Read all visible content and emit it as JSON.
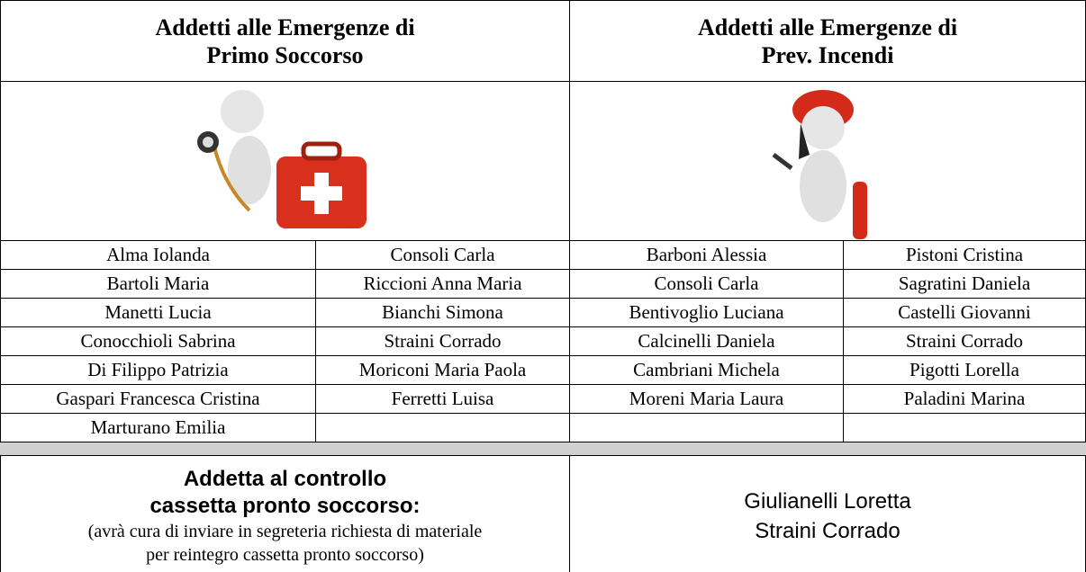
{
  "header": {
    "first_aid": [
      "Addetti alle Emergenze di",
      "Primo Soccorso"
    ],
    "fire": [
      "Addetti alle Emergenze di",
      "Prev. Incendi"
    ]
  },
  "first_aid_names": [
    [
      "Alma Iolanda",
      "Consoli Carla"
    ],
    [
      "Bartoli Maria",
      "Riccioni Anna Maria"
    ],
    [
      "Manetti Lucia",
      "Bianchi Simona"
    ],
    [
      "Conocchioli Sabrina",
      "Straini Corrado"
    ],
    [
      "Di Filippo Patrizia",
      "Moriconi Maria Paola"
    ],
    [
      "Gaspari Francesca Cristina",
      "Ferretti Luisa"
    ],
    [
      "Marturano Emilia"
    ]
  ],
  "fire_names": [
    [
      "Barboni Alessia",
      "Pistoni Cristina"
    ],
    [
      "Consoli Carla",
      "Sagratini Daniela"
    ],
    [
      "Bentivoglio Luciana",
      "Castelli Giovanni"
    ],
    [
      "Calcinelli Daniela",
      "Straini Corrado"
    ],
    [
      "Cambriani Michela",
      "Pigotti Lorella"
    ],
    [
      "Moreni Maria Laura",
      "Paladini Marina"
    ]
  ],
  "kit": {
    "title": [
      "Addetta al controllo",
      "cassetta pronto soccorso:"
    ],
    "note": [
      "(avrà cura di inviare in segreteria richiesta di materiale",
      "per reintegro cassetta pronto soccorso)"
    ],
    "names": [
      "Giulianelli Loretta",
      "Straini Corrado"
    ]
  }
}
